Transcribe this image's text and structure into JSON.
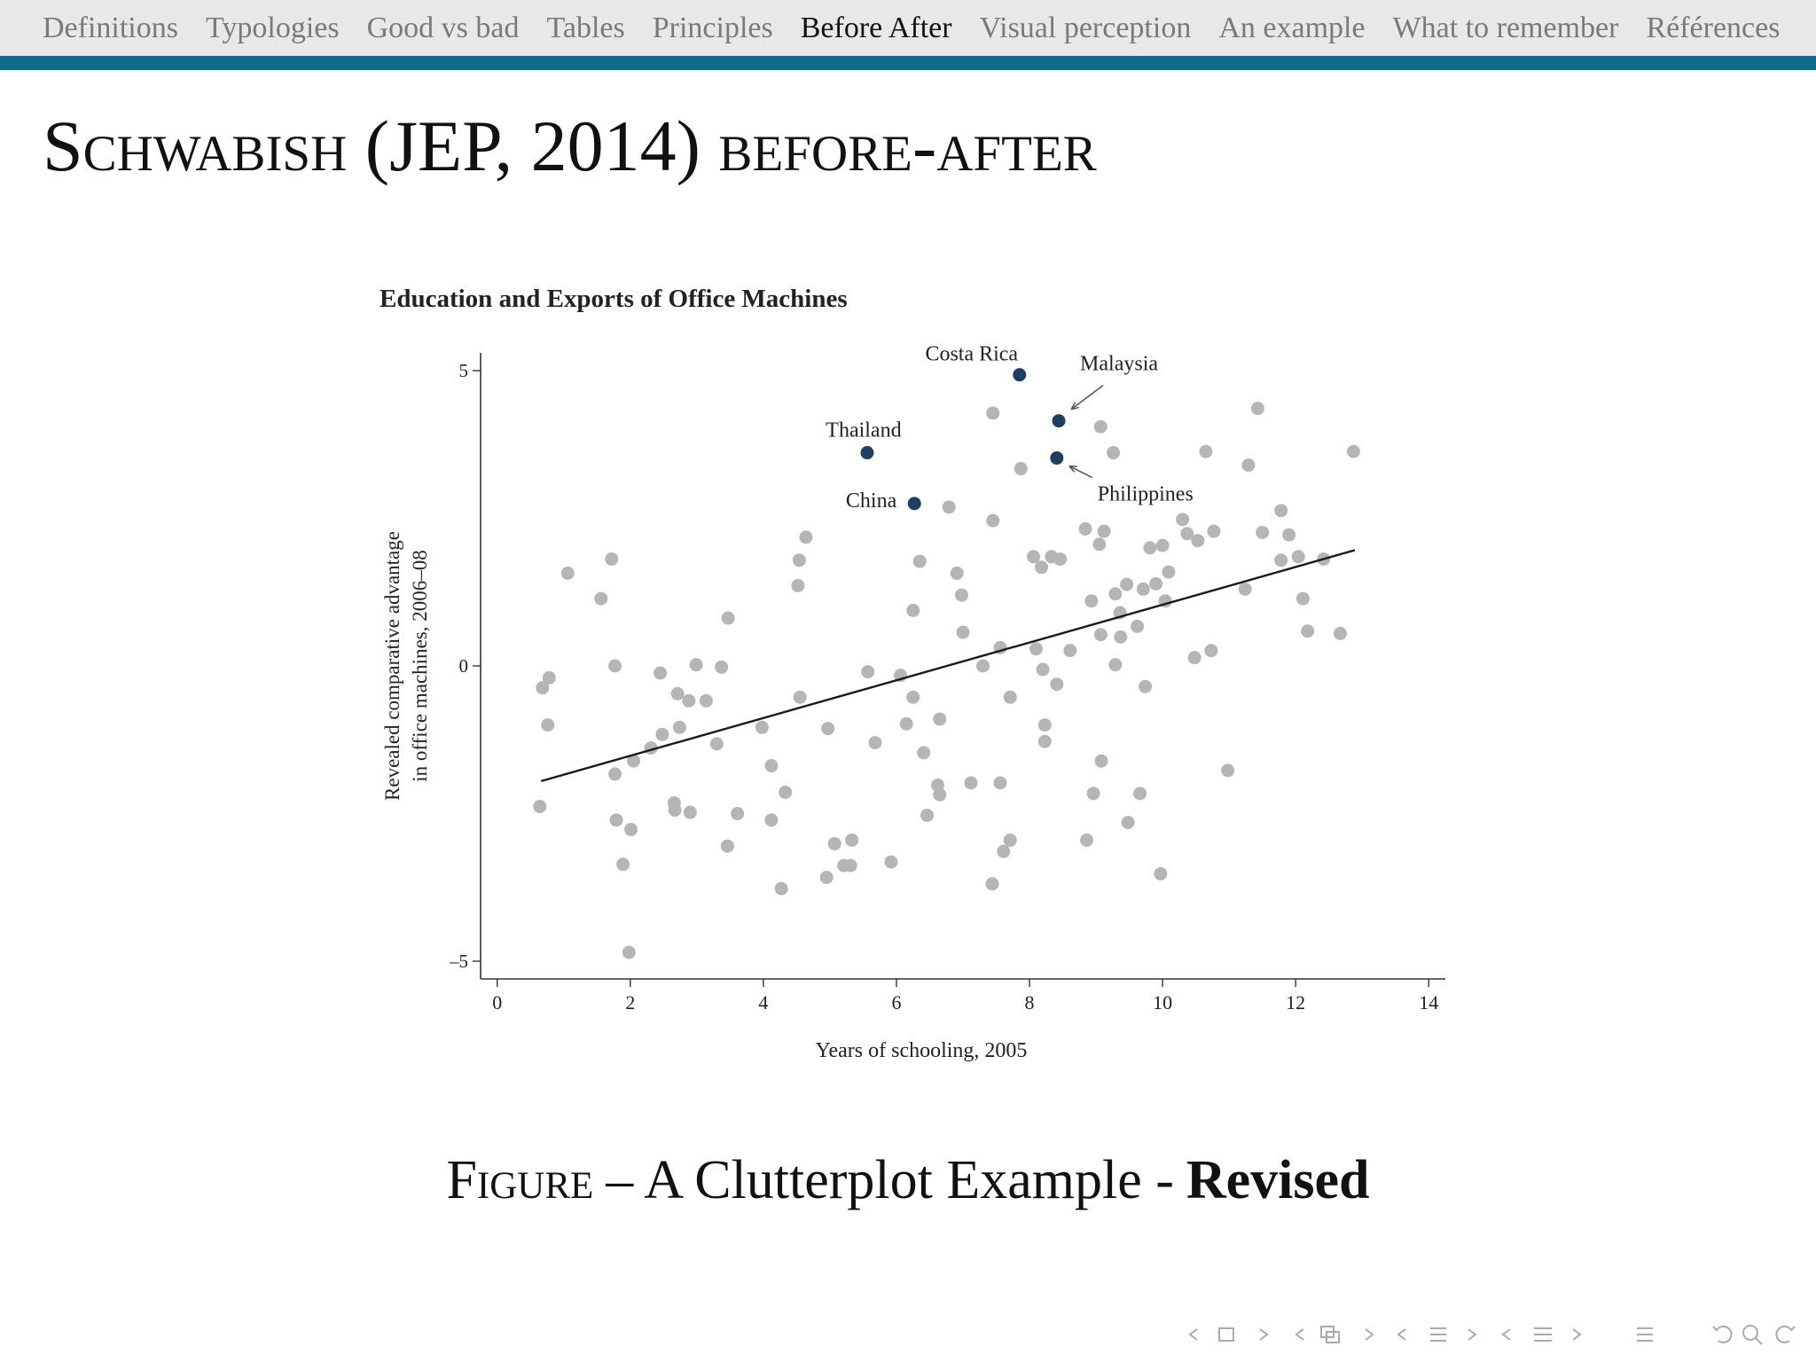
{
  "nav": {
    "items": [
      "Definitions",
      "Typologies",
      "Good vs bad",
      "Tables",
      "Principles",
      "Before After",
      "Visual perception",
      "An example",
      "What to remember",
      "Références"
    ],
    "active": 5
  },
  "slide": {
    "title": "Schwabish (JEP, 2014) before-after"
  },
  "chart_data": {
    "type": "scatter",
    "title": "Education and Exports of Office Machines",
    "xlabel": "Years of schooling, 2005",
    "ylabel": [
      "Revealed comparative advantage",
      "in office machines, 2006–08"
    ],
    "xlim": [
      -0.25,
      14.25
    ],
    "ylim": [
      -5.3,
      5.3
    ],
    "xticks": [
      0,
      2,
      4,
      6,
      8,
      10,
      12,
      14
    ],
    "yticks": [
      {
        "value": -5,
        "label": "–5"
      },
      0,
      5
    ],
    "points": {
      "color": "#b5b5b5",
      "x": [
        0.64,
        0.68,
        0.78,
        0.76,
        1.06,
        1.56,
        1.72,
        1.77,
        1.77,
        1.79,
        1.89,
        2.01,
        1.98,
        2.05,
        2.31,
        2.45,
        2.48,
        2.66,
        2.67,
        2.71,
        2.74,
        2.88,
        2.9,
        2.99,
        3.14,
        3.3,
        3.37,
        3.46,
        3.47,
        3.61,
        3.98,
        4.12,
        4.12,
        4.27,
        4.33,
        4.52,
        4.54,
        4.55,
        4.64,
        4.97,
        4.95,
        5.07,
        5.21,
        5.31,
        5.33,
        5.57,
        5.68,
        5.92,
        6.06,
        6.15,
        6.25,
        6.25,
        6.35,
        6.41,
        6.46,
        6.62,
        6.65,
        6.65,
        6.79,
        6.91,
        6.98,
        7.0,
        7.12,
        7.3,
        7.44,
        7.45,
        7.45,
        7.56,
        7.56,
        7.61,
        7.71,
        7.71,
        7.87,
        8.06,
        8.1,
        8.18,
        8.2,
        8.23,
        8.23,
        8.33,
        8.41,
        8.46,
        8.61,
        8.84,
        8.86,
        8.93,
        8.96,
        9.05,
        9.07,
        9.07,
        9.08,
        9.12,
        9.26,
        9.29,
        9.29,
        9.36,
        9.37,
        9.46,
        9.48,
        9.62,
        9.66,
        9.71,
        9.74,
        9.81,
        9.9,
        10.0,
        9.97,
        10.04,
        10.09,
        10.3,
        10.37,
        10.48,
        10.53,
        10.65,
        10.73,
        10.77,
        10.98,
        11.24,
        11.29,
        11.43,
        11.5,
        11.78,
        11.78,
        11.9,
        12.04,
        12.11,
        12.18,
        12.42,
        12.67,
        12.87
      ],
      "y": [
        -2.38,
        -0.37,
        -0.2,
        -1.0,
        1.57,
        1.14,
        1.81,
        0,
        -1.83,
        -2.61,
        -3.36,
        -2.77,
        -4.85,
        -1.61,
        -1.39,
        -0.12,
        -1.16,
        -2.32,
        -2.44,
        -0.47,
        -1.04,
        -0.59,
        -2.48,
        0.02,
        -0.59,
        -1.32,
        -0.02,
        -3.05,
        0.81,
        -2.5,
        -1.04,
        -1.69,
        -2.61,
        -3.77,
        -2.14,
        1.36,
        1.79,
        -0.53,
        2.18,
        -1.06,
        -3.58,
        -3.01,
        -3.38,
        -3.38,
        -2.95,
        -0.1,
        -1.3,
        -3.32,
        -0.16,
        -0.98,
        0.94,
        -0.53,
        1.77,
        -1.47,
        -2.53,
        -2.02,
        -2.18,
        -0.9,
        2.69,
        1.57,
        1.2,
        0.57,
        -1.98,
        0,
        -3.69,
        2.46,
        4.28,
        0.31,
        -1.98,
        -3.14,
        -2.95,
        -0.53,
        3.34,
        1.85,
        0.29,
        1.67,
        -0.06,
        -1.0,
        -1.28,
        1.85,
        -0.31,
        1.81,
        0.26,
        2.32,
        -2.95,
        1.1,
        -2.16,
        2.06,
        4.05,
        0.53,
        -1.61,
        2.28,
        3.61,
        0.02,
        1.22,
        0.9,
        0.49,
        1.38,
        -2.65,
        0.67,
        -2.16,
        1.3,
        -0.35,
        2.0,
        1.39,
        2.04,
        -3.52,
        1.1,
        1.59,
        2.48,
        2.24,
        0.14,
        2.12,
        3.63,
        0.26,
        2.28,
        -1.77,
        1.3,
        3.4,
        4.36,
        2.26,
        2.63,
        1.79,
        2.22,
        1.85,
        1.14,
        0.59,
        1.81,
        0.55,
        3.63
      ]
    },
    "highlighted": {
      "color": "#1f3f60",
      "labels": [
        "Costa Rica",
        "Malaysia",
        "Thailand",
        "China",
        "Philippines"
      ],
      "x": [
        7.85,
        8.44,
        5.56,
        6.27,
        8.41
      ],
      "y": [
        4.93,
        4.15,
        3.61,
        2.75,
        3.52
      ]
    },
    "fit": {
      "color": "#1a1a1a",
      "x": [
        0.66,
        12.89
      ],
      "y": [
        -1.95,
        1.96
      ]
    }
  },
  "caption": {
    "label": "Figure",
    "text": "– A Clutterplot Example -",
    "emphasis": "Revised"
  }
}
